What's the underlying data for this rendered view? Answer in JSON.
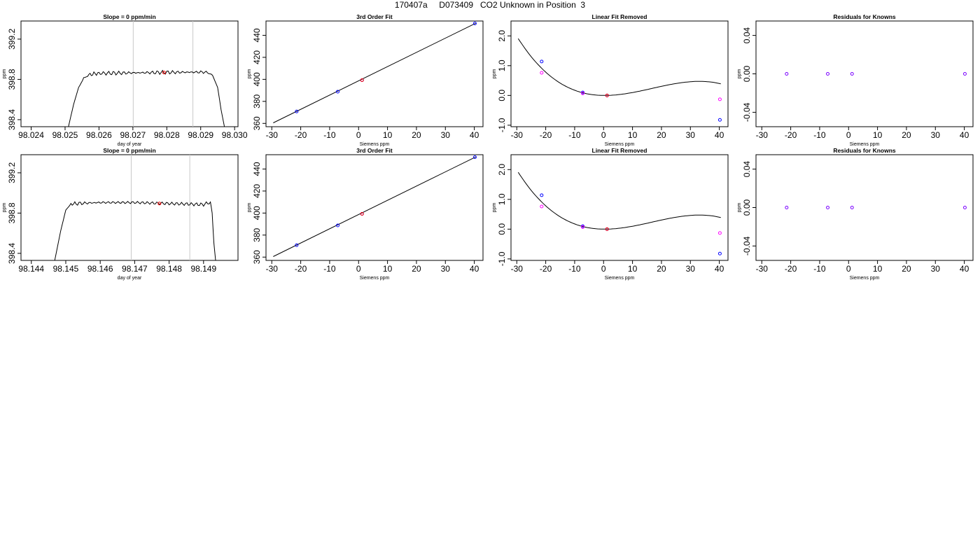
{
  "figure_title": "170407a     D073409   CO2 Unknown in Position  3",
  "colors": {
    "axis": "#000000",
    "curve": "#000000",
    "known": "#0000ff",
    "unknown": "#ff0000",
    "raw": "#ff00ff",
    "vline": "#c8c8c8"
  },
  "chart_data": [
    {
      "type": "line",
      "row": 0,
      "col": 0,
      "title": "Slope =  0  ppm/min",
      "xlabel": "day of year",
      "ylabel": "ppm",
      "xlim": [
        98.0237,
        98.0301
      ],
      "ylim": [
        398.33,
        399.38
      ],
      "xticks": [
        98.024,
        98.025,
        98.026,
        98.027,
        98.028,
        98.029,
        98.03
      ],
      "xtick_labels": [
        "98.024",
        "98.025",
        "98.026",
        "98.027",
        "98.028",
        "98.029",
        "98.030"
      ],
      "yticks": [
        398.4,
        398.8,
        399.2
      ],
      "ytick_labels": [
        "398.4",
        "398.8",
        "399.2"
      ],
      "vlines": [
        98.02701,
        98.02877
      ],
      "series": [
        {
          "x": [
            98.0251,
            98.02525,
            98.0254,
            98.02555,
            98.0257,
            98.02585,
            98.026,
            98.027,
            98.028,
            98.029,
            98.0292,
            98.02935,
            98.0295,
            98.0296,
            98.0297
          ],
          "y": [
            398.33,
            398.55,
            398.72,
            398.81,
            398.845,
            398.855,
            398.86,
            398.865,
            398.87,
            398.872,
            398.87,
            398.84,
            398.72,
            398.5,
            398.33
          ]
        }
      ],
      "point": {
        "x": 98.02792,
        "y": 398.868
      }
    },
    {
      "type": "scatter",
      "row": 0,
      "col": 1,
      "title": "3rd Order Fit",
      "xlabel": "Siemens ppm",
      "ylabel": "ppm",
      "xlim": [
        -32,
        43
      ],
      "ylim": [
        357,
        453
      ],
      "xticks": [
        -30,
        -20,
        -10,
        0,
        10,
        20,
        30,
        40
      ],
      "xtick_labels": [
        "-30",
        "-20",
        "-10",
        "0",
        "10",
        "20",
        "30",
        "40"
      ],
      "yticks": [
        360,
        380,
        400,
        420,
        440
      ],
      "ytick_labels": [
        "360",
        "380",
        "400",
        "420",
        "440"
      ],
      "curve": {
        "type": "line_through",
        "x": [
          -29.5,
          40.5
        ],
        "y": [
          360.5,
          451.0
        ]
      },
      "points": [
        {
          "x": -21.4,
          "y": 370.8,
          "kind": "known"
        },
        {
          "x": -7.2,
          "y": 388.8,
          "kind": "known"
        },
        {
          "x": 1.2,
          "y": 399.3,
          "kind": "known"
        },
        {
          "x": 1.2,
          "y": 399.3,
          "kind": "unknown"
        },
        {
          "x": 40.2,
          "y": 450.8,
          "kind": "known"
        }
      ]
    },
    {
      "type": "scatter",
      "row": 0,
      "col": 2,
      "title": "Linear Fit Removed",
      "xlabel": "Siemens ppm",
      "ylabel": "ppm",
      "xlim": [
        -32,
        43
      ],
      "ylim": [
        -1.05,
        2.5
      ],
      "xticks": [
        -30,
        -20,
        -10,
        0,
        10,
        20,
        30,
        40
      ],
      "xtick_labels": [
        "-30",
        "-20",
        "-10",
        "0",
        "10",
        "20",
        "30",
        "40"
      ],
      "yticks": [
        -1.0,
        0.0,
        1.0,
        2.0
      ],
      "ytick_labels": [
        "-1.0",
        "0.0",
        "1.0",
        "2.0"
      ],
      "curve": {
        "type": "cubic",
        "x": [
          -29.5,
          40.5
        ],
        "coeffs": [
          -2.7e-05,
          0.00136,
          -0.00115,
          0.0
        ]
      },
      "points": [
        {
          "x": -21.4,
          "y": 1.14,
          "kind": "known"
        },
        {
          "x": -21.4,
          "y": 0.76,
          "kind": "raw"
        },
        {
          "x": -7.2,
          "y": 0.1,
          "kind": "known"
        },
        {
          "x": -7.2,
          "y": 0.07,
          "kind": "raw"
        },
        {
          "x": 1.2,
          "y": 0.0,
          "kind": "known"
        },
        {
          "x": 1.2,
          "y": 0.0,
          "kind": "unknown"
        },
        {
          "x": 40.2,
          "y": -0.13,
          "kind": "raw"
        },
        {
          "x": 40.2,
          "y": -0.82,
          "kind": "known"
        }
      ]
    },
    {
      "type": "scatter",
      "row": 0,
      "col": 3,
      "title": "Residuals for Knowns",
      "xlabel": "Siemens ppm",
      "ylabel": "ppm",
      "xlim": [
        -32,
        43
      ],
      "ylim": [
        -0.055,
        0.055
      ],
      "xticks": [
        -30,
        -20,
        -10,
        0,
        10,
        20,
        30,
        40
      ],
      "xtick_labels": [
        "-30",
        "-20",
        "-10",
        "0",
        "10",
        "20",
        "30",
        "40"
      ],
      "yticks": [
        -0.04,
        0.0,
        0.04
      ],
      "ytick_labels": [
        "-0.04",
        "0.00",
        "0.04"
      ],
      "points": [
        {
          "x": -21.4,
          "y": 0.0,
          "kind": "residual"
        },
        {
          "x": -7.2,
          "y": 0.0,
          "kind": "residual"
        },
        {
          "x": 1.2,
          "y": 0.0,
          "kind": "residual"
        },
        {
          "x": 40.2,
          "y": 0.0,
          "kind": "residual"
        }
      ]
    },
    {
      "type": "line",
      "row": 1,
      "col": 0,
      "title": "Slope =  0  ppm/min",
      "xlabel": "day of year",
      "ylabel": "ppm",
      "xlim": [
        98.1437,
        98.15
      ],
      "ylim": [
        398.33,
        399.38
      ],
      "xticks": [
        98.144,
        98.145,
        98.146,
        98.147,
        98.148,
        98.149
      ],
      "xtick_labels": [
        "98.144",
        "98.145",
        "98.146",
        "98.147",
        "98.148",
        "98.149"
      ],
      "yticks": [
        398.4,
        398.8,
        399.2
      ],
      "ytick_labels": [
        "398.4",
        "398.8",
        "399.2"
      ],
      "vlines": [
        98.1469,
        98.1486
      ],
      "series": [
        {
          "x": [
            98.14468,
            98.14485,
            98.145,
            98.14515,
            98.1453,
            98.146,
            98.147,
            98.148,
            98.149,
            98.1492,
            98.14925,
            98.1493,
            98.14935
          ],
          "y": [
            398.33,
            398.62,
            398.83,
            398.89,
            398.895,
            398.905,
            398.905,
            398.895,
            398.885,
            398.91,
            398.8,
            398.5,
            398.33
          ]
        }
      ],
      "point": {
        "x": 98.14772,
        "y": 398.895
      }
    },
    {
      "type": "scatter",
      "row": 1,
      "col": 1,
      "title": "3rd Order Fit",
      "xlabel": "Siemens ppm",
      "ylabel": "ppm",
      "xlim": [
        -32,
        43
      ],
      "ylim": [
        357,
        453
      ],
      "xticks": [
        -30,
        -20,
        -10,
        0,
        10,
        20,
        30,
        40
      ],
      "xtick_labels": [
        "-30",
        "-20",
        "-10",
        "0",
        "10",
        "20",
        "30",
        "40"
      ],
      "yticks": [
        360,
        380,
        400,
        420,
        440
      ],
      "ytick_labels": [
        "360",
        "380",
        "400",
        "420",
        "440"
      ],
      "curve": {
        "type": "line_through",
        "x": [
          -29.5,
          40.5
        ],
        "y": [
          360.5,
          451.0
        ]
      },
      "points": [
        {
          "x": -21.4,
          "y": 370.8,
          "kind": "known"
        },
        {
          "x": -7.2,
          "y": 388.8,
          "kind": "known"
        },
        {
          "x": 1.2,
          "y": 399.3,
          "kind": "known"
        },
        {
          "x": 1.2,
          "y": 399.3,
          "kind": "unknown"
        },
        {
          "x": 40.2,
          "y": 450.8,
          "kind": "known"
        }
      ]
    },
    {
      "type": "scatter",
      "row": 1,
      "col": 2,
      "title": "Linear Fit Removed",
      "xlabel": "Siemens ppm",
      "ylabel": "ppm",
      "xlim": [
        -32,
        43
      ],
      "ylim": [
        -1.05,
        2.5
      ],
      "xticks": [
        -30,
        -20,
        -10,
        0,
        10,
        20,
        30,
        40
      ],
      "xtick_labels": [
        "-30",
        "-20",
        "-10",
        "0",
        "10",
        "20",
        "30",
        "40"
      ],
      "yticks": [
        -1.0,
        0.0,
        1.0,
        2.0
      ],
      "ytick_labels": [
        "-1.0",
        "0.0",
        "1.0",
        "2.0"
      ],
      "curve": {
        "type": "cubic",
        "x": [
          -29.5,
          40.5
        ],
        "coeffs": [
          -2.7e-05,
          0.00136,
          -0.00115,
          0.0
        ]
      },
      "points": [
        {
          "x": -21.4,
          "y": 1.14,
          "kind": "known"
        },
        {
          "x": -21.4,
          "y": 0.76,
          "kind": "raw"
        },
        {
          "x": -7.2,
          "y": 0.1,
          "kind": "known"
        },
        {
          "x": -7.2,
          "y": 0.07,
          "kind": "raw"
        },
        {
          "x": 1.2,
          "y": 0.0,
          "kind": "known"
        },
        {
          "x": 1.2,
          "y": 0.0,
          "kind": "unknown"
        },
        {
          "x": 40.2,
          "y": -0.13,
          "kind": "raw"
        },
        {
          "x": 40.2,
          "y": -0.82,
          "kind": "known"
        }
      ]
    },
    {
      "type": "scatter",
      "row": 1,
      "col": 3,
      "title": "Residuals for Knowns",
      "xlabel": "Siemens ppm",
      "ylabel": "ppm",
      "xlim": [
        -32,
        43
      ],
      "ylim": [
        -0.055,
        0.055
      ],
      "xticks": [
        -30,
        -20,
        -10,
        0,
        10,
        20,
        30,
        40
      ],
      "xtick_labels": [
        "-30",
        "-20",
        "-10",
        "0",
        "10",
        "20",
        "30",
        "40"
      ],
      "yticks": [
        -0.04,
        0.0,
        0.04
      ],
      "ytick_labels": [
        "-0.04",
        "0.00",
        "0.04"
      ],
      "points": [
        {
          "x": -21.4,
          "y": 0.0,
          "kind": "residual"
        },
        {
          "x": -7.2,
          "y": 0.0,
          "kind": "residual"
        },
        {
          "x": 1.2,
          "y": 0.0,
          "kind": "residual"
        },
        {
          "x": 40.2,
          "y": 0.0,
          "kind": "residual"
        }
      ]
    }
  ]
}
